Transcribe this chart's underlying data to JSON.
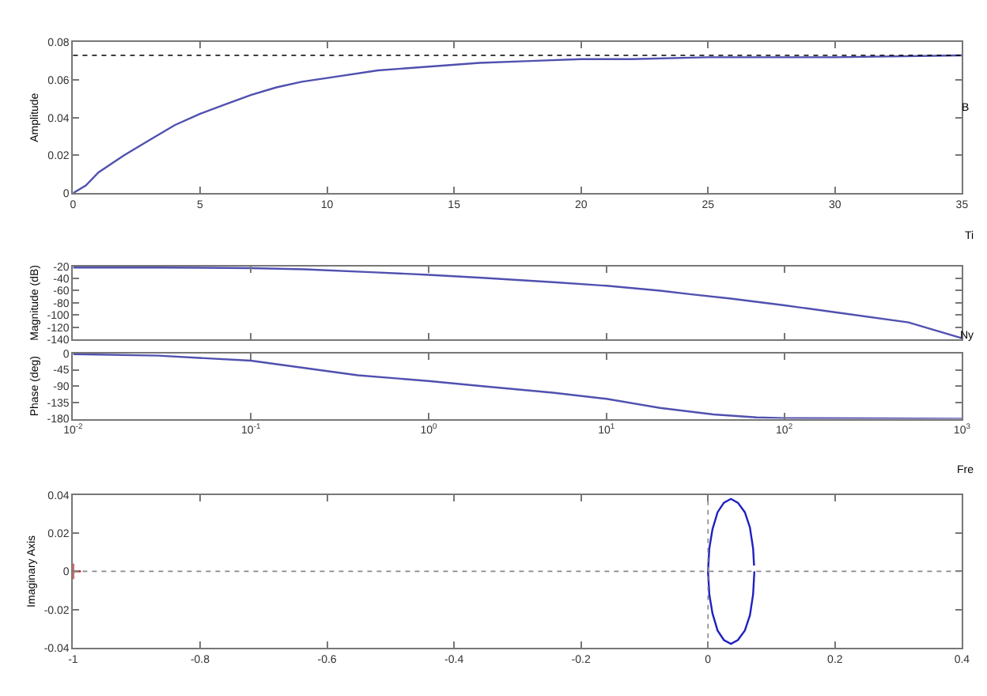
{
  "chart_data": [
    {
      "type": "line",
      "ylabel": "Amplitude",
      "annotations": [
        "B",
        "Ti"
      ],
      "xlim": [
        0,
        35
      ],
      "ylim": [
        0,
        0.08
      ],
      "xticks": [
        0,
        5,
        10,
        15,
        20,
        25,
        30,
        35
      ],
      "yticks": [
        0,
        0.02,
        0.04,
        0.06,
        0.08
      ],
      "ref_lines": [
        {
          "axis": "y",
          "value": 0.073,
          "color": "#000000",
          "line_style": "dotted"
        }
      ],
      "x": [
        0,
        0.5,
        1,
        2,
        3,
        4,
        5,
        6,
        7,
        8,
        9,
        10,
        12,
        14,
        16,
        18,
        20,
        22,
        25,
        30,
        35
      ],
      "series": [
        {
          "color": "#5050b0",
          "values": [
            0,
            0.004,
            0.011,
            0.02,
            0.028,
            0.036,
            0.042,
            0.047,
            0.052,
            0.056,
            0.059,
            0.061,
            0.065,
            0.067,
            0.069,
            0.07,
            0.071,
            0.071,
            0.072,
            0.072,
            0.073
          ]
        }
      ]
    },
    {
      "type": "line",
      "ylabel": "Magnitude (dB)",
      "annotations": [
        "Ny"
      ],
      "log": "x",
      "tick_labels": "y",
      "xlim": [
        0.01,
        1000
      ],
      "ylim": [
        -140,
        -20
      ],
      "xticks": [
        0.01,
        0.1,
        1,
        10,
        100,
        1000
      ],
      "yticks": [
        -140,
        -120,
        -100,
        -80,
        -60,
        -40,
        -20
      ],
      "x": [
        0.01,
        0.03,
        0.1,
        0.2,
        0.5,
        1,
        2,
        5,
        10,
        20,
        30,
        50,
        100,
        200,
        500,
        1000
      ],
      "series": [
        {
          "color": "#5050b0",
          "values": [
            -22,
            -22,
            -23,
            -25,
            -30,
            -34,
            -39,
            -46,
            -52,
            -60,
            -66,
            -73,
            -84,
            -96,
            -112,
            -138
          ]
        }
      ]
    },
    {
      "type": "line",
      "ylabel": "Phase (deg)",
      "annotations": [
        "Fre"
      ],
      "log": "x",
      "xlim": [
        0.01,
        1000
      ],
      "ylim": [
        -180,
        0
      ],
      "xticks": [
        {
          "value": 0.01,
          "label": "10$^{-2}$"
        },
        {
          "value": 0.1,
          "label": "10$^{-1}$"
        },
        {
          "value": 1,
          "label": "10$^{0}$"
        },
        {
          "value": 10,
          "label": "10$^{1}$"
        },
        {
          "value": 100,
          "label": "10$^{2}$"
        },
        {
          "value": 1000,
          "label": "10$^{3}$"
        }
      ],
      "yticks": [
        -180,
        -135,
        -90,
        -45,
        0
      ],
      "x": [
        0.01,
        0.03,
        0.1,
        0.2,
        0.4,
        1,
        2,
        5,
        10,
        20,
        40,
        70,
        100,
        300,
        1000
      ],
      "series": [
        {
          "color": "#5050b0",
          "values": [
            -2,
            -6,
            -20,
            -40,
            -60,
            -76,
            -90,
            -108,
            -125,
            -150,
            -168,
            -176,
            -178,
            -179,
            -180
          ]
        }
      ]
    },
    {
      "type": "line",
      "ylabel": "Imaginary Axis",
      "xlim": [
        -1,
        0.4
      ],
      "ylim": [
        -0.04,
        0.04
      ],
      "xticks": [
        -1,
        -0.8,
        -0.6,
        -0.4,
        -0.2,
        0,
        0.2,
        0.4
      ],
      "yticks": [
        -0.04,
        -0.02,
        0,
        0.02,
        0.04
      ],
      "ref_lines": [
        {
          "axis": "y",
          "value": 0,
          "color": "#888888",
          "line_style": "dotted"
        },
        {
          "axis": "x",
          "value": 0,
          "color": "#888888",
          "line_style": "dotted"
        }
      ],
      "series": [
        {
          "color": "#2020c0",
          "x": [
            0.073,
            0.071,
            0.066,
            0.058,
            0.047,
            0.036,
            0.025,
            0.015,
            0.007,
            0.002,
            0,
            0.002,
            0.007,
            0.015,
            0.025,
            0.036,
            0.047,
            0.058,
            0.066,
            0.071,
            0.0725
          ],
          "values": [
            0,
            -0.012,
            -0.023,
            -0.031,
            -0.036,
            -0.038,
            -0.036,
            -0.031,
            -0.022,
            -0.012,
            0,
            0.012,
            0.022,
            0.031,
            0.036,
            0.038,
            0.036,
            0.031,
            0.023,
            0.012,
            0.003
          ]
        },
        {
          "type": "scatter",
          "marker": "cross",
          "color": "#cc0000",
          "x": [
            -1
          ],
          "values": [
            0
          ]
        }
      ]
    }
  ]
}
